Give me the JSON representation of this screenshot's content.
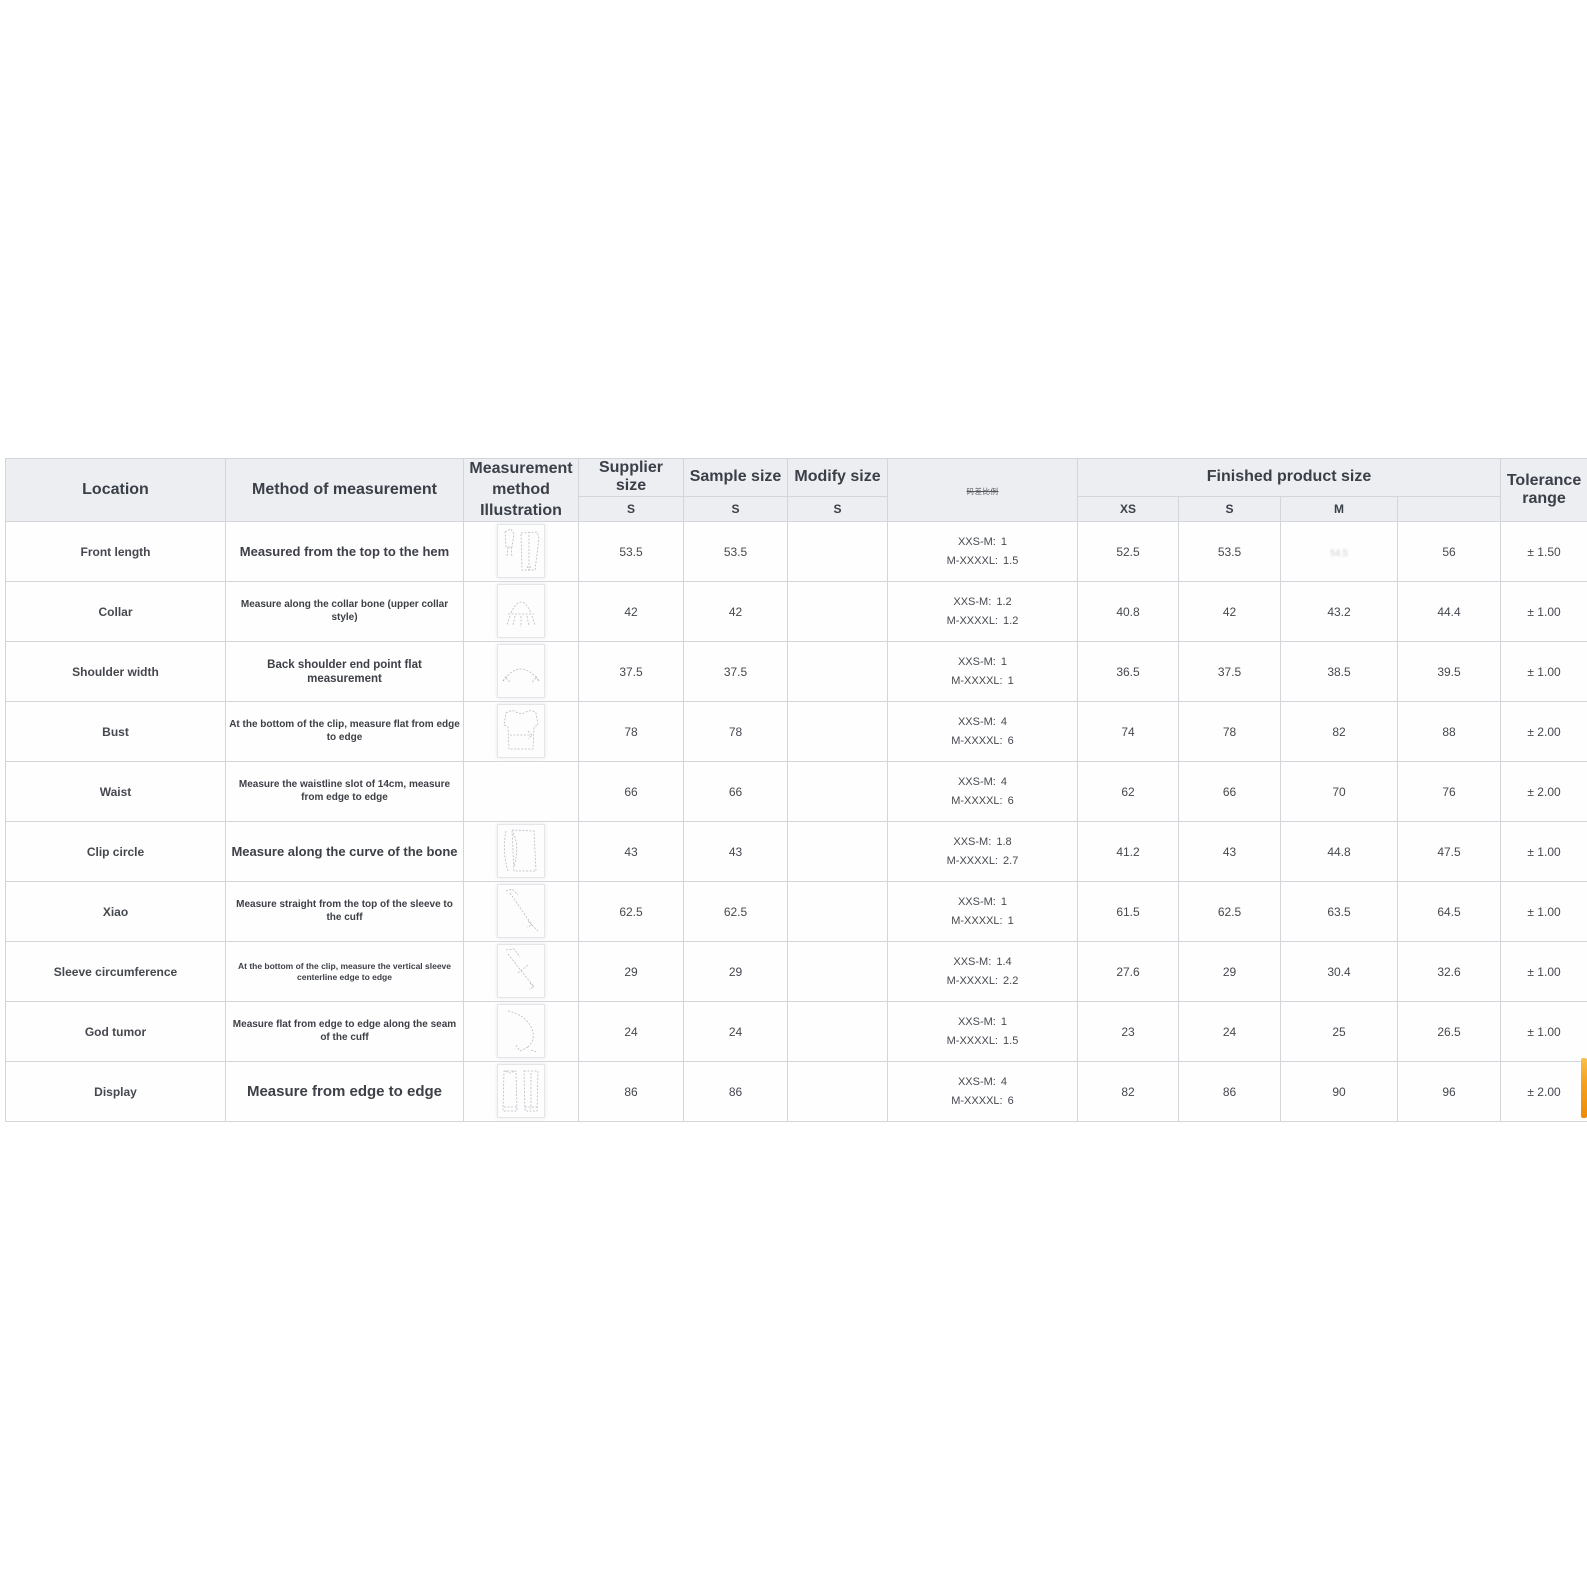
{
  "colors": {
    "header_bg": "#eceef2",
    "grid_border": "#d2d5da",
    "text_dark": "#3b4048",
    "accent_orange": "#f5a21f"
  },
  "table": {
    "headers": {
      "location": "Location",
      "method": "Method of measurement",
      "illustration_line1": "Measurement method",
      "illustration_line2": "Illustration",
      "supplier": "Supplier size",
      "sample": "Sample size",
      "modify": "Modify size",
      "grading": "码差比例",
      "finished_group": "Finished product size",
      "tolerance": "Tolerance range",
      "size_s": "S",
      "finished_sizes": [
        "XS",
        "S",
        "M",
        ""
      ]
    },
    "rows": [
      {
        "location": "Front length",
        "method": "Measured from the top to the hem",
        "illustration": "front-length",
        "supplier_s": "53.5",
        "sample_s": "53.5",
        "modify_s": "",
        "grading": [
          "XXS-M: 1",
          "M-XXXXL: 1.5"
        ],
        "finished": [
          "52.5",
          "53.5",
          "54.5",
          "56"
        ],
        "faded_m": true,
        "tolerance": "± 1.50"
      },
      {
        "location": "Collar",
        "method": "Measure along the collar bone (upper collar style)",
        "illustration": "collar",
        "supplier_s": "42",
        "sample_s": "42",
        "modify_s": "",
        "grading": [
          "XXS-M: 1.2",
          "M-XXXXL: 1.2"
        ],
        "finished": [
          "40.8",
          "42",
          "43.2",
          "44.4"
        ],
        "faded_m": false,
        "tolerance": "± 1.00"
      },
      {
        "location": "Shoulder width",
        "method": "Back shoulder end point flat measurement",
        "illustration": "shoulder",
        "supplier_s": "37.5",
        "sample_s": "37.5",
        "modify_s": "",
        "grading": [
          "XXS-M: 1",
          "M-XXXXL: 1"
        ],
        "finished": [
          "36.5",
          "37.5",
          "38.5",
          "39.5"
        ],
        "faded_m": false,
        "tolerance": "± 1.00"
      },
      {
        "location": "Bust",
        "method": "At the bottom of the clip, measure flat from edge to edge",
        "illustration": "bust",
        "supplier_s": "78",
        "sample_s": "78",
        "modify_s": "",
        "grading": [
          "XXS-M: 4",
          "M-XXXXL: 6"
        ],
        "finished": [
          "74",
          "78",
          "82",
          "88"
        ],
        "faded_m": false,
        "tolerance": "± 2.00"
      },
      {
        "location": "Waist",
        "method": "Measure the waistline slot of 14cm, measure from edge to edge",
        "illustration": null,
        "supplier_s": "66",
        "sample_s": "66",
        "modify_s": "",
        "grading": [
          "XXS-M: 4",
          "M-XXXXL: 6"
        ],
        "finished": [
          "62",
          "66",
          "70",
          "76"
        ],
        "faded_m": false,
        "tolerance": "± 2.00"
      },
      {
        "location": "Clip circle",
        "method": "Measure along the curve of the bone",
        "illustration": "clip-circle",
        "supplier_s": "43",
        "sample_s": "43",
        "modify_s": "",
        "grading": [
          "XXS-M: 1.8",
          "M-XXXXL: 2.7"
        ],
        "finished": [
          "41.2",
          "43",
          "44.8",
          "47.5"
        ],
        "faded_m": false,
        "tolerance": "± 1.00"
      },
      {
        "location": "Xiao",
        "method": "Measure straight from the top of the sleeve to the cuff",
        "illustration": "xiao",
        "supplier_s": "62.5",
        "sample_s": "62.5",
        "modify_s": "",
        "grading": [
          "XXS-M: 1",
          "M-XXXXL: 1"
        ],
        "finished": [
          "61.5",
          "62.5",
          "63.5",
          "64.5"
        ],
        "faded_m": false,
        "tolerance": "± 1.00"
      },
      {
        "location": "Sleeve circumference",
        "method": "At the bottom of the clip, measure the vertical sleeve centerline edge to edge",
        "illustration": "sleeve",
        "supplier_s": "29",
        "sample_s": "29",
        "modify_s": "",
        "grading": [
          "XXS-M: 1.4",
          "M-XXXXL: 2.2"
        ],
        "finished": [
          "27.6",
          "29",
          "30.4",
          "32.6"
        ],
        "faded_m": false,
        "tolerance": "± 1.00"
      },
      {
        "location": "God tumor",
        "method": "Measure flat from edge to edge along the seam of the cuff",
        "illustration": "cuff",
        "supplier_s": "24",
        "sample_s": "24",
        "modify_s": "",
        "grading": [
          "XXS-M: 1",
          "M-XXXXL: 1.5"
        ],
        "finished": [
          "23",
          "24",
          "25",
          "26.5"
        ],
        "faded_m": false,
        "tolerance": "± 1.00"
      },
      {
        "location": "Display",
        "method": "Measure from edge to edge",
        "illustration": "display",
        "supplier_s": "86",
        "sample_s": "86",
        "modify_s": "",
        "grading": [
          "XXS-M: 4",
          "M-XXXXL: 6"
        ],
        "finished": [
          "82",
          "86",
          "90",
          "96"
        ],
        "faded_m": false,
        "tolerance": "± 2.00"
      }
    ]
  }
}
